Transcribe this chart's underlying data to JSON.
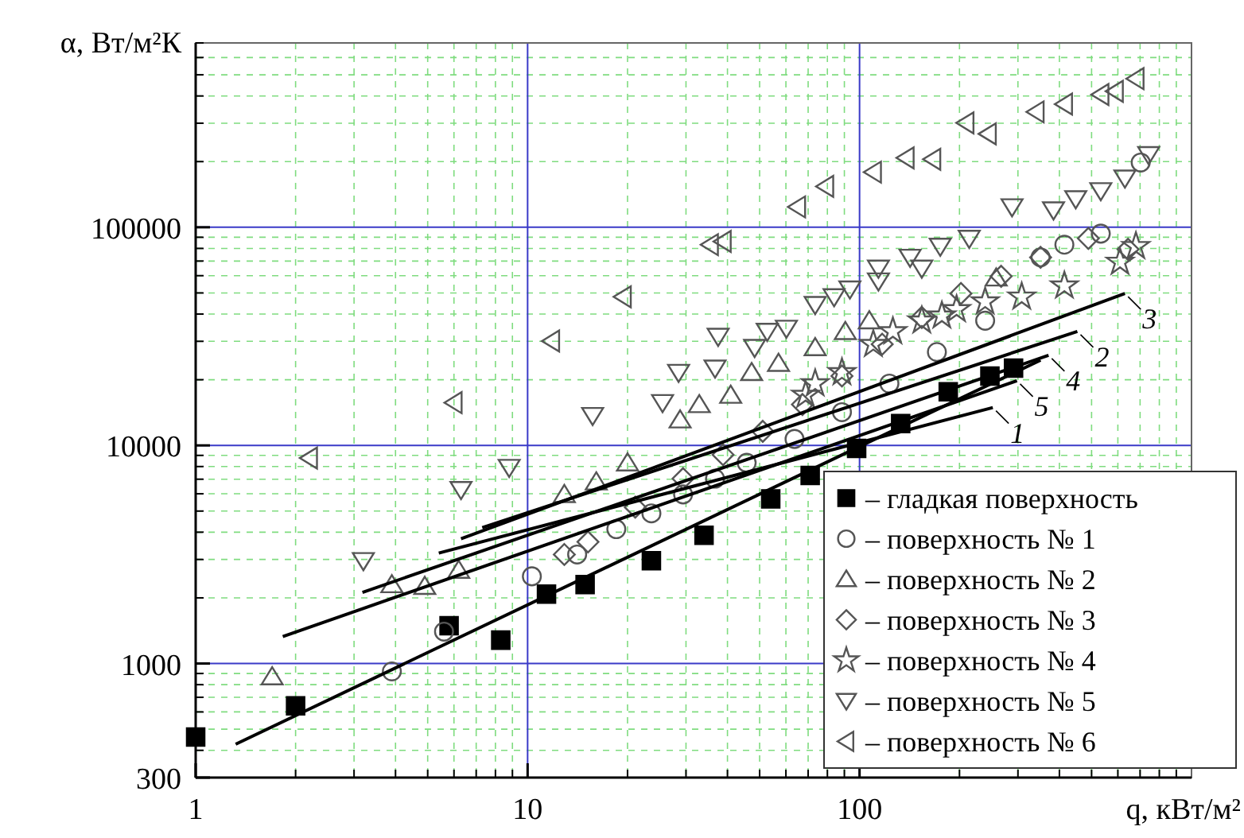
{
  "chart_data": {
    "type": "scatter",
    "xlabel": "q, кВт/м²",
    "ylabel": "α, Вт/м²К",
    "log": "xy",
    "xlim": [
      1,
      1000
    ],
    "ylim": [
      300,
      700000
    ],
    "xticks": [
      1,
      {
        "value": 2,
        "label": null
      },
      {
        "value": 3,
        "label": null
      },
      {
        "value": 4,
        "label": null
      },
      {
        "value": 5,
        "label": null
      },
      {
        "value": 6,
        "label": null
      },
      {
        "value": 7,
        "label": null
      },
      {
        "value": 8,
        "label": null
      },
      {
        "value": 9,
        "label": null
      },
      10,
      {
        "value": 20,
        "label": null
      },
      {
        "value": 30,
        "label": null
      },
      {
        "value": 40,
        "label": null
      },
      {
        "value": 50,
        "label": null
      },
      {
        "value": 60,
        "label": null
      },
      {
        "value": 70,
        "label": null
      },
      {
        "value": 80,
        "label": null
      },
      {
        "value": 90,
        "label": null
      },
      100,
      {
        "value": 200,
        "label": null
      },
      {
        "value": 300,
        "label": null
      },
      {
        "value": 400,
        "label": null
      },
      {
        "value": 500,
        "label": null
      },
      {
        "value": 600,
        "label": null
      },
      {
        "value": 700,
        "label": null
      },
      {
        "value": 800,
        "label": null
      },
      {
        "value": 900,
        "label": null
      }
    ],
    "yticks": [
      300,
      {
        "value": 400,
        "label": null
      },
      {
        "value": 500,
        "label": null
      },
      {
        "value": 600,
        "label": null
      },
      {
        "value": 700,
        "label": null
      },
      {
        "value": 800,
        "label": null
      },
      {
        "value": 900,
        "label": null
      },
      1000,
      {
        "value": 2000,
        "label": null
      },
      {
        "value": 3000,
        "label": null
      },
      {
        "value": 4000,
        "label": null
      },
      {
        "value": 5000,
        "label": null
      },
      {
        "value": 6000,
        "label": null
      },
      {
        "value": 7000,
        "label": null
      },
      {
        "value": 8000,
        "label": null
      },
      {
        "value": 9000,
        "label": null
      },
      10000,
      {
        "value": 20000,
        "label": null
      },
      {
        "value": 30000,
        "label": null
      },
      {
        "value": 40000,
        "label": null
      },
      {
        "value": 50000,
        "label": null
      },
      {
        "value": 60000,
        "label": null
      },
      {
        "value": 70000,
        "label": null
      },
      {
        "value": 80000,
        "label": null
      },
      {
        "value": 90000,
        "label": null
      },
      100000,
      {
        "value": 200000,
        "label": null
      },
      {
        "value": 300000,
        "label": null
      },
      {
        "value": 400000,
        "label": null
      },
      {
        "value": 500000,
        "label": null
      },
      {
        "value": 600000,
        "label": null
      },
      {
        "value": 700000,
        "label": null
      }
    ],
    "grid": true,
    "legend": "bottom right",
    "series": [
      {
        "name": "– гладкая поверхность",
        "marker": "square",
        "color": "#000000",
        "x": [
          1,
          2,
          5.8,
          8.3,
          11.4,
          14.9,
          23.6,
          34,
          54,
          71,
          98,
          133,
          185,
          247,
          291
        ],
        "values": [
          460,
          640,
          1490,
          1280,
          2080,
          2300,
          2960,
          3870,
          5680,
          7280,
          9680,
          12600,
          17600,
          20800,
          22600
        ]
      },
      {
        "name": "– поверхность № 1",
        "marker": "circle",
        "color": "#555555",
        "x": [
          3.9,
          5.6,
          10.3,
          14.1,
          18.5,
          23.6,
          29.4,
          36.7,
          45.7,
          63.7,
          88.5,
          123,
          171,
          239,
          351,
          414,
          533,
          703
        ],
        "values": [
          920,
          1400,
          2510,
          3160,
          4130,
          4880,
          5960,
          7040,
          8320,
          10700,
          14200,
          19200,
          26800,
          37300,
          72800,
          83200,
          93500,
          198000
        ]
      },
      {
        "name": "– поверхность № 2",
        "marker": "triangle",
        "color": "#555555",
        "x": [
          1.7,
          3.9,
          4.9,
          6.2,
          12.9,
          16.1,
          20,
          28.8,
          32.9,
          40.9,
          47.3,
          57,
          73.5,
          90.6,
          107,
          258
        ],
        "values": [
          870,
          2300,
          2260,
          2680,
          5960,
          6810,
          8320,
          13100,
          15400,
          17000,
          21600,
          23800,
          28100,
          33300,
          37300,
          58600
        ]
      },
      {
        "name": "– поверхность № 3",
        "marker": "diamond",
        "color": "#555555",
        "x": [
          12.9,
          15.2,
          21.1,
          29.4,
          38.8,
          51.1,
          67.3,
          88.5,
          117,
          154,
          202,
          267,
          351,
          489,
          644
        ],
        "values": [
          3160,
          3610,
          5210,
          7040,
          9060,
          11600,
          15400,
          20800,
          29100,
          38600,
          49700,
          59600,
          72800,
          88900,
          79300
        ]
      },
      {
        "name": "– поверхность № 4",
        "marker": "star",
        "color": "#555555",
        "x": [
          68.8,
          73.5,
          88.5,
          110,
          126,
          154,
          177,
          196,
          239,
          308,
          414,
          609,
          680
        ],
        "values": [
          17000,
          19200,
          21600,
          29100,
          33300,
          37300,
          39300,
          42000,
          45600,
          48000,
          53900,
          69300,
          81800
        ]
      },
      {
        "name": "– поверхность № 5",
        "marker": "triangle-down",
        "color": "#555555",
        "x": [
          3.2,
          6.3,
          8.8,
          15.7,
          25.5,
          28.5,
          36.7,
          37.5,
          48.3,
          52.7,
          60.2,
          73.5,
          83.8,
          93.5,
          114,
          114,
          142,
          154,
          175,
          214,
          288,
          384,
          448,
          533,
          630,
          743
        ],
        "values": [
          2960,
          6270,
          7920,
          13700,
          15700,
          21600,
          22600,
          31600,
          28100,
          33300,
          34400,
          44200,
          48000,
          52100,
          56700,
          64900,
          72800,
          64900,
          81800,
          88900,
          124000,
          120000,
          135000,
          147000,
          168000,
          215000
        ]
      },
      {
        "name": "– поверхность № 6",
        "marker": "triangle-left",
        "color": "#555555",
        "x": [
          2.2,
          6,
          11.8,
          19.4,
          35.5,
          38.8,
          65,
          79,
          110,
          138,
          166,
          209,
          244,
          340,
          414,
          533,
          589,
          680
        ],
        "values": [
          8750,
          15700,
          30100,
          48000,
          83200,
          86100,
          124000,
          154000,
          179000,
          208000,
          205000,
          301000,
          268000,
          338000,
          367000,
          406000,
          420000,
          480000
        ]
      },
      {
        "type": "line",
        "color": "#000000",
        "x": [
          1.32,
          351
        ],
        "values": [
          427,
          24600
        ]
      },
      {
        "name": "1",
        "type": "line",
        "color": "#000000",
        "x": [
          5.4,
          252
        ],
        "values": [
          3210,
          14900
        ]
      },
      {
        "name": "2",
        "type": "line",
        "color": "#000000",
        "x": [
          7.3,
          453
        ],
        "values": [
          4200,
          33300
        ]
      },
      {
        "name": "3",
        "type": "line",
        "color": "#000000",
        "x": [
          6.3,
          630
        ],
        "values": [
          3730,
          49700
        ]
      },
      {
        "name": "4",
        "type": "line",
        "color": "#000000",
        "x": [
          3.18,
          371
        ],
        "values": [
          2120,
          25900
        ]
      },
      {
        "name": "5",
        "type": "line",
        "color": "#000000",
        "x": [
          1.83,
          298
        ],
        "values": [
          1330,
          19800
        ]
      }
    ]
  }
}
